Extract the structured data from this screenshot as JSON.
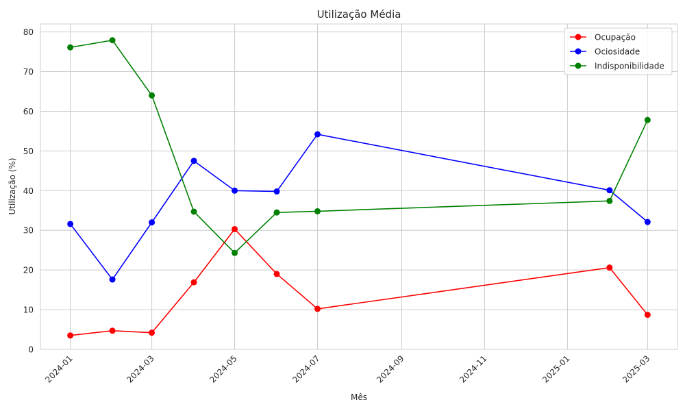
{
  "chart_data": {
    "type": "line",
    "title": "Utilização Média",
    "xlabel": "Mês",
    "ylabel": "Utilização (%)",
    "x_dates": [
      "2024-01-01",
      "2024-02-01",
      "2024-03-01",
      "2024-04-01",
      "2024-05-01",
      "2024-06-01",
      "2024-07-01",
      "2025-02-01",
      "2025-03-01"
    ],
    "x_tick_labels": [
      "2024-01",
      "2024-03",
      "2024-05",
      "2024-07",
      "2024-09",
      "2024-11",
      "2025-01",
      "2025-03"
    ],
    "x_tick_dates": [
      "2024-01-01",
      "2024-03-01",
      "2024-05-01",
      "2024-07-01",
      "2024-09-01",
      "2024-11-01",
      "2025-01-01",
      "2025-03-01"
    ],
    "xlim": [
      "2023-12-10",
      "2025-03-23"
    ],
    "ylim": [
      0,
      82
    ],
    "y_ticks": [
      0,
      10,
      20,
      30,
      40,
      50,
      60,
      70,
      80
    ],
    "grid": true,
    "legend_position": "top-right",
    "series": [
      {
        "name": "Ocupação",
        "color": "#ff0000",
        "marker": "circle",
        "values": [
          3.5,
          4.7,
          4.2,
          16.9,
          30.3,
          19.0,
          10.2,
          20.6,
          8.7
        ]
      },
      {
        "name": "Ociosidade",
        "color": "#0000ff",
        "marker": "circle",
        "values": [
          31.6,
          17.6,
          32.0,
          47.5,
          40.0,
          39.8,
          54.2,
          40.1,
          32.1
        ]
      },
      {
        "name": "Indisponibilidade",
        "color": "#008000",
        "marker": "circle",
        "values": [
          76.1,
          77.9,
          64.0,
          34.7,
          24.3,
          34.5,
          34.8,
          37.4,
          57.8
        ]
      }
    ]
  }
}
